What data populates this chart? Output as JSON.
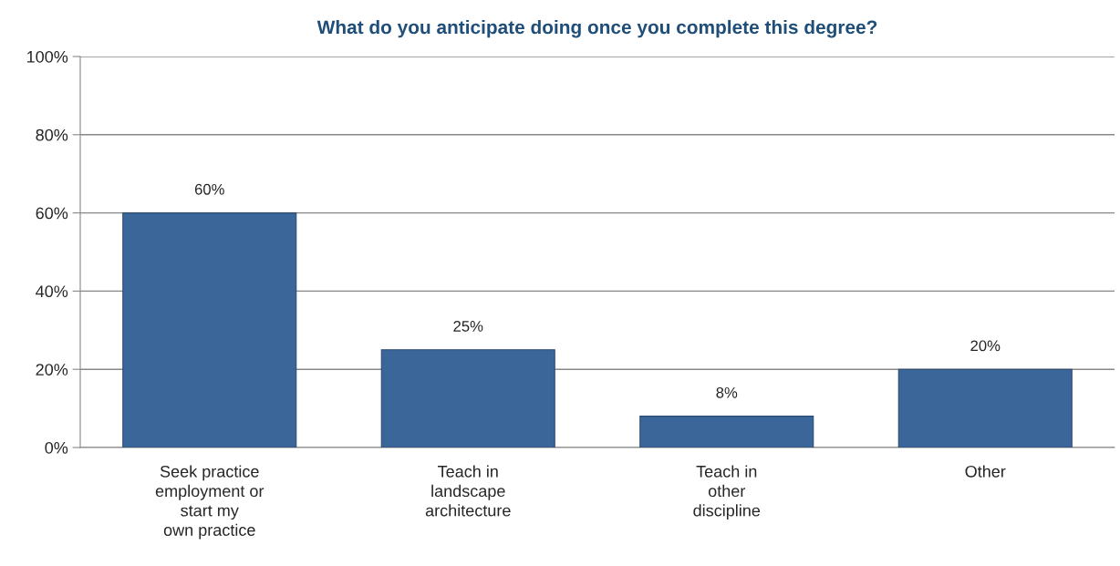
{
  "chart_data": {
    "type": "bar",
    "title": "What do you anticipate doing once you complete this degree?",
    "categories": [
      "Seek practice\nemployment or\nstart my\nown practice",
      "Teach in\nlandscape\narchitecture",
      "Teach in\nother\ndiscipline",
      "Other"
    ],
    "values": [
      60,
      25,
      8,
      20
    ],
    "color": "#3b6699",
    "ylim": [
      0,
      100
    ],
    "yticks": [
      {
        "value": 0,
        "label": "0%"
      },
      {
        "value": 20,
        "label": "20%"
      },
      {
        "value": 40,
        "label": "40%"
      },
      {
        "value": 60,
        "label": "60%"
      },
      {
        "value": 80,
        "label": "80%"
      },
      {
        "value": 100,
        "label": "100%"
      }
    ],
    "grid": "y",
    "value_labels": [
      "60%",
      "25%",
      "8%",
      "20%"
    ]
  }
}
